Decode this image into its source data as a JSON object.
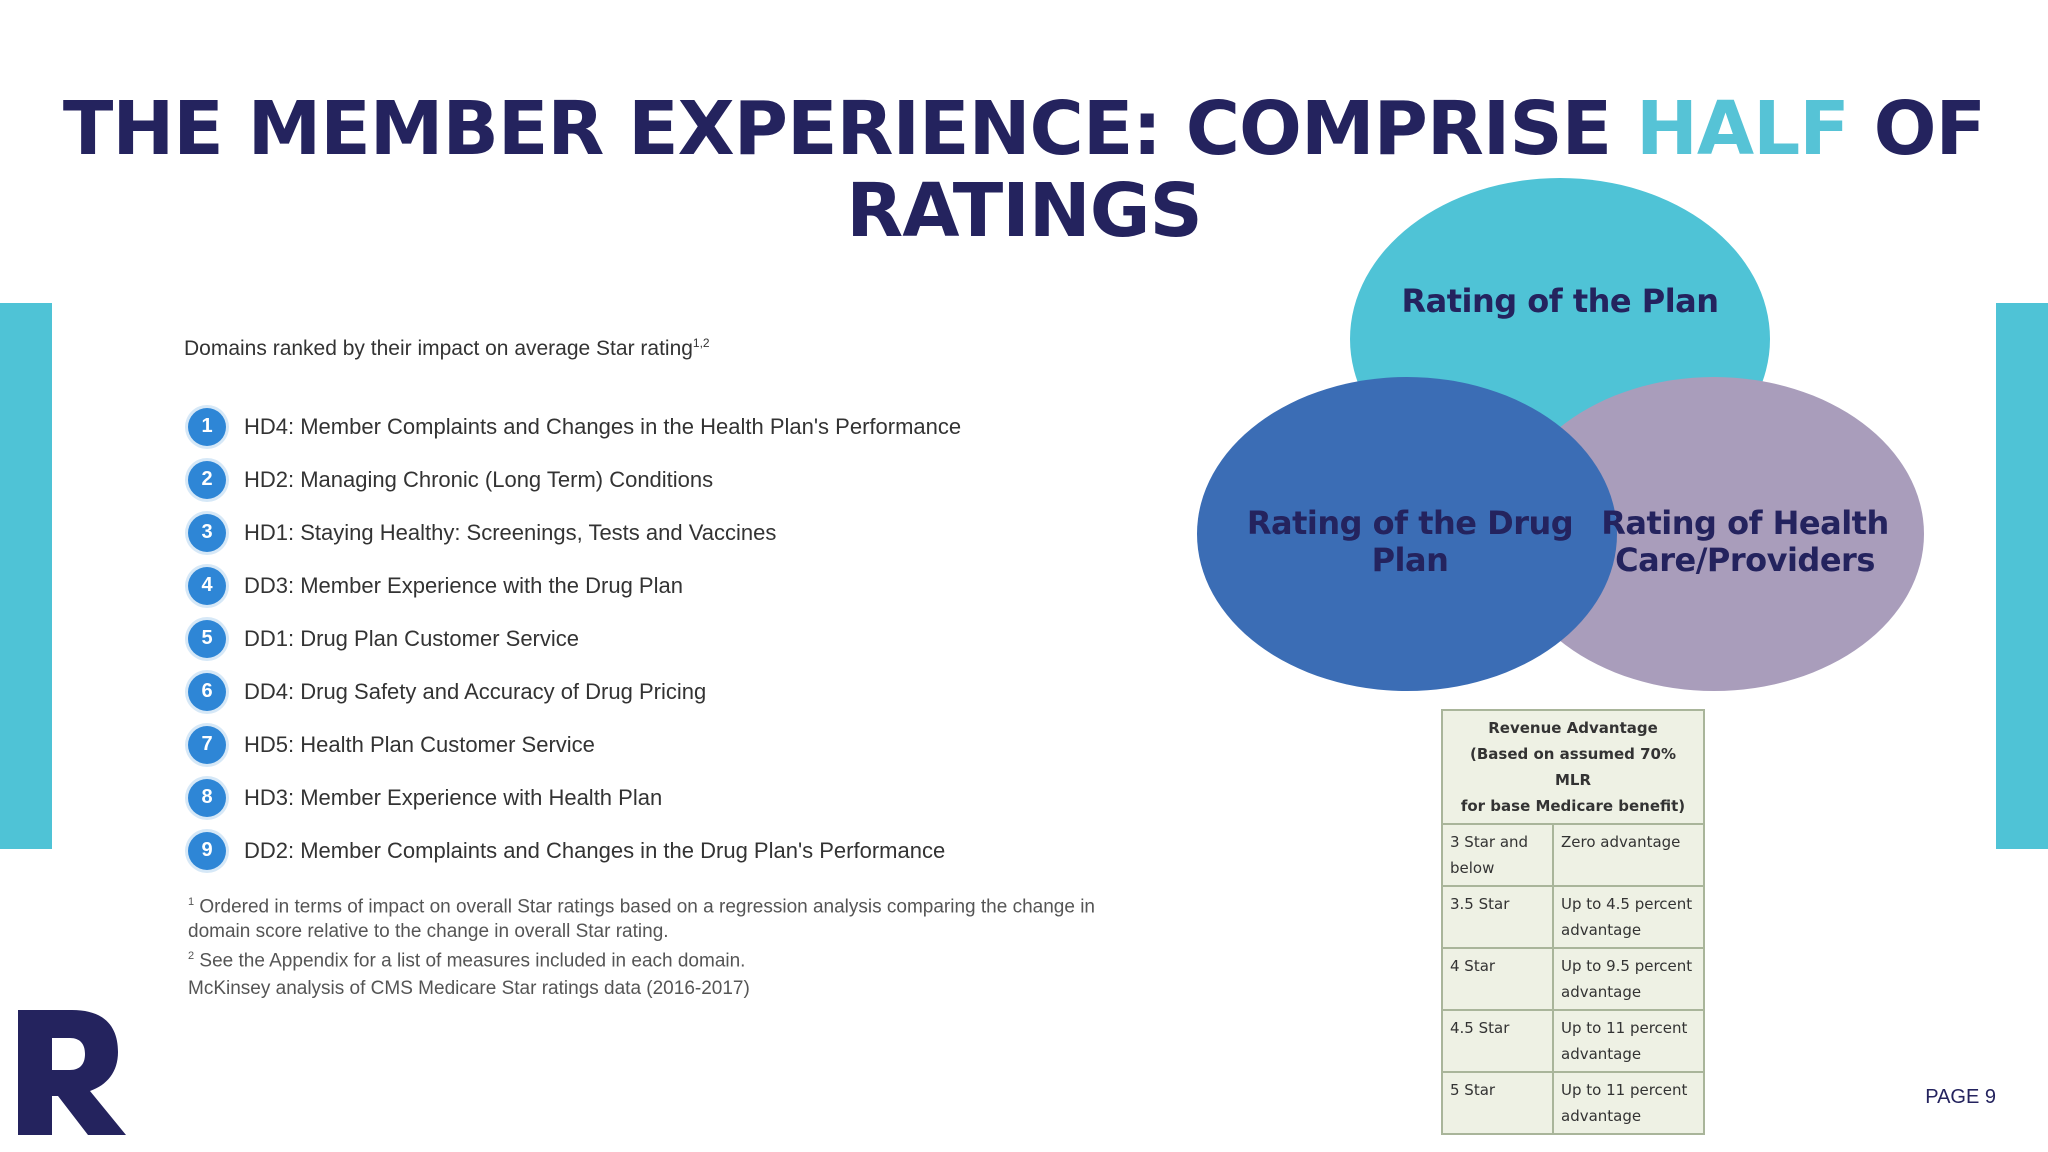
{
  "title": {
    "part1": "THE MEMBER EXPERIENCE: COMPRISE ",
    "accent": "HALF",
    "part2": " OF",
    "line2": "RATINGS"
  },
  "domains": {
    "heading": "Domains ranked by their impact on average Star rating",
    "heading_sup": "1,2",
    "items": [
      {
        "num": "1",
        "text": "HD4: Member Complaints and Changes in the Health Plan's Performance"
      },
      {
        "num": "2",
        "text": "HD2: Managing Chronic (Long Term) Conditions"
      },
      {
        "num": "3",
        "text": "HD1: Staying Healthy: Screenings, Tests and Vaccines"
      },
      {
        "num": "4",
        "text": "DD3: Member Experience with the Drug Plan"
      },
      {
        "num": "5",
        "text": "DD1: Drug Plan Customer Service"
      },
      {
        "num": "6",
        "text": "DD4: Drug Safety and Accuracy of Drug Pricing"
      },
      {
        "num": "7",
        "text": "HD5: Health Plan Customer Service"
      },
      {
        "num": "8",
        "text": "HD3: Member Experience with Health Plan"
      },
      {
        "num": "9",
        "text": "DD2: Member Complaints and Changes in the Drug Plan's Performance"
      }
    ],
    "footnote1_sup": "1",
    "footnote1": "Ordered in terms of impact on overall Star ratings based on a regression analysis comparing the change in domain score relative to the change in overall Star rating.",
    "footnote2_sup": "2",
    "footnote2": "See the Appendix for a list of measures included in each domain.",
    "source": "McKinsey analysis of CMS Medicare Star ratings data (2016-2017)"
  },
  "venn": {
    "top": "Rating of the Plan",
    "left_line1": "Rating of the Drug",
    "left_line2": "Plan",
    "right_line1": "Rating of Health",
    "right_line2": "Care/Providers",
    "colors": {
      "top": "#4fc3d6",
      "left": "#3b6db5",
      "right": "#a99dbb"
    }
  },
  "revenue_table": {
    "header": "Revenue Advantage",
    "subheader_line1": "(Based on assumed 70% MLR",
    "subheader_line2": "for base Medicare benefit)",
    "rows": [
      {
        "rating": "3 Star and below",
        "advantage": "Zero advantage"
      },
      {
        "rating": "3.5 Star",
        "advantage": "Up to 4.5 percent advantage"
      },
      {
        "rating": "4 Star",
        "advantage": "Up to 9.5 percent advantage"
      },
      {
        "rating": "4.5 Star",
        "advantage": "Up to 11 percent advantage"
      },
      {
        "rating": "5 Star",
        "advantage": "Up to 11 percent advantage"
      }
    ]
  },
  "page_number": "PAGE 9"
}
